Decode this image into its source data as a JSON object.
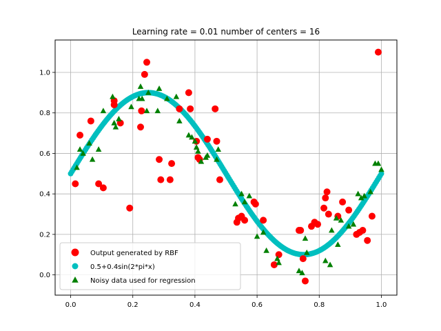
{
  "chart_data": {
    "type": "scatter",
    "title": "Learning rate = 0.01 number of centers = 16",
    "xlabel": "",
    "ylabel": "",
    "xlim": [
      -0.05,
      1.05
    ],
    "ylim": [
      -0.1,
      1.16
    ],
    "grid": true,
    "legend_position": "lower-left",
    "x_ticks": [
      "0.0",
      "0.2",
      "0.4",
      "0.6",
      "0.8",
      "1.0"
    ],
    "y_ticks": [
      "0.0",
      "0.2",
      "0.4",
      "0.6",
      "0.8",
      "1.0"
    ],
    "series": [
      {
        "name": "Output generated by RBF",
        "marker": "circle",
        "color": "#ff0000",
        "points": [
          [
            0.015,
            0.45
          ],
          [
            0.03,
            0.69
          ],
          [
            0.065,
            0.76
          ],
          [
            0.09,
            0.45
          ],
          [
            0.105,
            0.43
          ],
          [
            0.14,
            0.84
          ],
          [
            0.14,
            0.86
          ],
          [
            0.16,
            0.75
          ],
          [
            0.19,
            0.33
          ],
          [
            0.225,
            0.73
          ],
          [
            0.228,
            0.81
          ],
          [
            0.238,
            0.99
          ],
          [
            0.245,
            1.05
          ],
          [
            0.285,
            0.57
          ],
          [
            0.29,
            0.47
          ],
          [
            0.32,
            0.47
          ],
          [
            0.325,
            0.55
          ],
          [
            0.35,
            0.82
          ],
          [
            0.38,
            0.9
          ],
          [
            0.385,
            0.82
          ],
          [
            0.405,
            0.66
          ],
          [
            0.41,
            0.58
          ],
          [
            0.415,
            0.57
          ],
          [
            0.44,
            0.67
          ],
          [
            0.465,
            0.82
          ],
          [
            0.47,
            0.66
          ],
          [
            0.48,
            0.47
          ],
          [
            0.535,
            0.26
          ],
          [
            0.54,
            0.28
          ],
          [
            0.55,
            0.29
          ],
          [
            0.56,
            0.27
          ],
          [
            0.59,
            0.36
          ],
          [
            0.595,
            0.35
          ],
          [
            0.62,
            0.27
          ],
          [
            0.655,
            0.05
          ],
          [
            0.67,
            0.1
          ],
          [
            0.735,
            0.22
          ],
          [
            0.74,
            0.22
          ],
          [
            0.748,
            0.08
          ],
          [
            0.755,
            -0.03
          ],
          [
            0.775,
            0.24
          ],
          [
            0.785,
            0.26
          ],
          [
            0.795,
            0.25
          ],
          [
            0.815,
            0.33
          ],
          [
            0.82,
            0.38
          ],
          [
            0.825,
            0.41
          ],
          [
            0.83,
            0.3
          ],
          [
            0.86,
            0.29
          ],
          [
            0.875,
            0.36
          ],
          [
            0.895,
            0.32
          ],
          [
            0.92,
            0.2
          ],
          [
            0.93,
            0.21
          ],
          [
            0.94,
            0.22
          ],
          [
            0.955,
            0.17
          ],
          [
            0.97,
            0.29
          ],
          [
            0.99,
            1.1
          ]
        ]
      },
      {
        "name": "0.5+0.4sin(2*pi*x)",
        "marker": "circle",
        "color": "#00bfbf",
        "function": "0.5+0.4sin(2*pi*x)",
        "x_range": [
          0,
          1
        ],
        "n_points": 250
      },
      {
        "name": "Noisy data used for regression",
        "marker": "triangle",
        "color": "#008000",
        "points": [
          [
            0.02,
            0.53
          ],
          [
            0.03,
            0.62
          ],
          [
            0.04,
            0.6
          ],
          [
            0.06,
            0.65
          ],
          [
            0.07,
            0.57
          ],
          [
            0.09,
            0.62
          ],
          [
            0.105,
            0.81
          ],
          [
            0.135,
            0.88
          ],
          [
            0.14,
            0.75
          ],
          [
            0.145,
            0.73
          ],
          [
            0.155,
            0.77
          ],
          [
            0.195,
            0.83
          ],
          [
            0.22,
            0.87
          ],
          [
            0.225,
            0.93
          ],
          [
            0.23,
            0.87
          ],
          [
            0.245,
            0.81
          ],
          [
            0.25,
            0.9
          ],
          [
            0.28,
            0.81
          ],
          [
            0.285,
            0.92
          ],
          [
            0.31,
            0.87
          ],
          [
            0.34,
            0.88
          ],
          [
            0.35,
            0.76
          ],
          [
            0.38,
            0.69
          ],
          [
            0.39,
            0.68
          ],
          [
            0.4,
            0.66
          ],
          [
            0.405,
            0.63
          ],
          [
            0.41,
            0.61
          ],
          [
            0.42,
            0.56
          ],
          [
            0.435,
            0.58
          ],
          [
            0.44,
            0.59
          ],
          [
            0.47,
            0.57
          ],
          [
            0.475,
            0.62
          ],
          [
            0.53,
            0.35
          ],
          [
            0.55,
            0.4
          ],
          [
            0.56,
            0.36
          ],
          [
            0.575,
            0.39
          ],
          [
            0.6,
            0.19
          ],
          [
            0.62,
            0.21
          ],
          [
            0.63,
            0.12
          ],
          [
            0.665,
            0.08
          ],
          [
            0.67,
            0.06
          ],
          [
            0.735,
            0.02
          ],
          [
            0.745,
            0.01
          ],
          [
            0.755,
            0.18
          ],
          [
            0.76,
            0.11
          ],
          [
            0.82,
            0.07
          ],
          [
            0.835,
            0.05
          ],
          [
            0.84,
            0.22
          ],
          [
            0.855,
            0.28
          ],
          [
            0.86,
            0.15
          ],
          [
            0.87,
            0.27
          ],
          [
            0.895,
            0.24
          ],
          [
            0.91,
            0.25
          ],
          [
            0.925,
            0.4
          ],
          [
            0.935,
            0.38
          ],
          [
            0.945,
            0.39
          ],
          [
            0.965,
            0.41
          ],
          [
            0.98,
            0.55
          ],
          [
            0.99,
            0.55
          ],
          [
            1.0,
            0.52
          ]
        ]
      }
    ]
  }
}
